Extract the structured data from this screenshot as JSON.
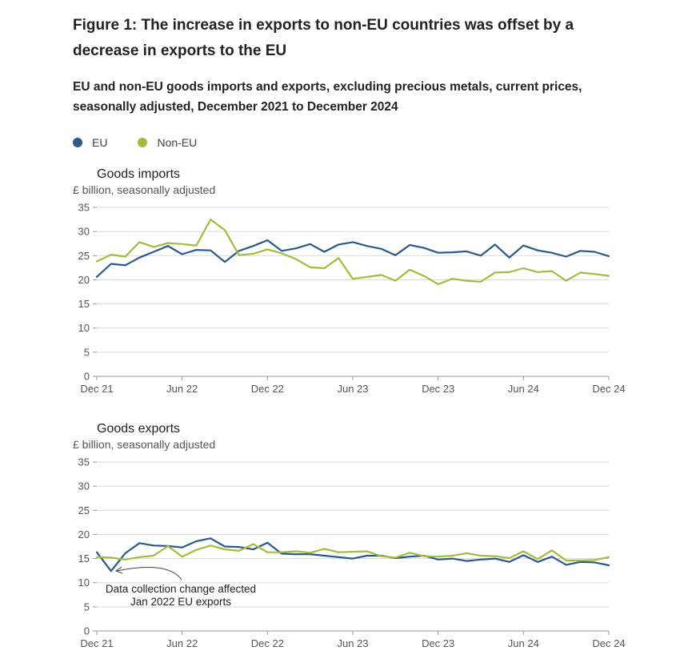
{
  "figure": {
    "title": "Figure 1: The increase in exports to non-EU countries was offset by a decrease in exports to the EU",
    "subtitle": "EU and non-EU goods imports and exports, excluding precious metals, current prices, seasonally adjusted, December 2021 to December 2024"
  },
  "legend": [
    {
      "label": "EU",
      "color": "#2a5a8c"
    },
    {
      "label": "Non-EU",
      "color": "#a2bc3c"
    }
  ],
  "chart_data": [
    {
      "type": "line",
      "title": "Goods imports",
      "ylabel": "£ billion, seasonally adjusted",
      "ylim": [
        0,
        35
      ],
      "yticks": [
        0,
        5,
        10,
        15,
        20,
        25,
        30,
        35
      ],
      "xticks": [
        "Dec 21",
        "Jun 22",
        "Dec 22",
        "Jun 23",
        "Dec 23",
        "Jun 24",
        "Dec 24"
      ],
      "xtick_index": [
        0,
        6,
        12,
        18,
        24,
        30,
        36
      ],
      "series": [
        {
          "name": "EU",
          "color": "#2a5a8c",
          "values": [
            20.6,
            23.3,
            23.0,
            24.6,
            25.8,
            27.0,
            25.3,
            26.2,
            26.1,
            23.7,
            26.0,
            27.0,
            28.2,
            26.0,
            26.5,
            27.4,
            25.8,
            27.3,
            27.8,
            27.0,
            26.4,
            25.1,
            27.2,
            26.6,
            25.6,
            25.7,
            25.9,
            25.0,
            27.3,
            24.6,
            27.1,
            26.1,
            25.6,
            24.8,
            26.0,
            25.8,
            24.9
          ]
        },
        {
          "name": "Non-EU",
          "color": "#a2bc3c",
          "values": [
            23.8,
            25.2,
            24.8,
            27.8,
            26.8,
            27.6,
            27.4,
            27.1,
            32.5,
            30.3,
            25.1,
            25.4,
            26.3,
            25.5,
            24.3,
            22.6,
            22.4,
            24.5,
            20.2,
            20.6,
            21.0,
            19.8,
            22.1,
            20.8,
            19.1,
            20.2,
            19.8,
            19.6,
            21.5,
            21.6,
            22.4,
            21.6,
            21.8,
            19.8,
            21.5,
            21.2,
            20.8
          ]
        }
      ]
    },
    {
      "type": "line",
      "title": "Goods exports",
      "ylabel": "£ billion, seasonally adjusted",
      "ylim": [
        0,
        35
      ],
      "yticks": [
        0,
        5,
        10,
        15,
        20,
        25,
        30,
        35
      ],
      "xticks": [
        "Dec 21",
        "Jun 22",
        "Dec 22",
        "Jun 23",
        "Dec 23",
        "Jun 24",
        "Dec 24"
      ],
      "xtick_index": [
        0,
        6,
        12,
        18,
        24,
        30,
        36
      ],
      "series": [
        {
          "name": "EU",
          "color": "#2a5a8c",
          "values": [
            16.3,
            12.4,
            16.1,
            18.2,
            17.7,
            17.6,
            17.3,
            18.6,
            19.2,
            17.5,
            17.4,
            16.9,
            18.3,
            16.0,
            15.9,
            15.9,
            15.6,
            15.3,
            15.0,
            15.6,
            15.6,
            15.1,
            15.4,
            15.6,
            14.8,
            15.0,
            14.5,
            14.8,
            15.0,
            14.3,
            15.7,
            14.3,
            15.4,
            13.7,
            14.3,
            14.2,
            13.6
          ]
        },
        {
          "name": "Non-EU",
          "color": "#a2bc3c",
          "values": [
            15.3,
            15.2,
            14.8,
            15.3,
            15.6,
            17.6,
            15.4,
            16.8,
            17.7,
            16.9,
            16.6,
            18.0,
            16.3,
            16.3,
            16.5,
            16.2,
            17.0,
            16.3,
            16.4,
            16.5,
            15.5,
            15.2,
            16.2,
            15.5,
            15.4,
            15.6,
            16.1,
            15.6,
            15.5,
            15.1,
            16.5,
            14.9,
            16.7,
            14.6,
            14.6,
            14.7,
            15.3
          ]
        }
      ],
      "annotations": [
        {
          "text_lines": [
            "Data collection change affected",
            "Jan 2022 EU exports"
          ]
        }
      ]
    }
  ]
}
